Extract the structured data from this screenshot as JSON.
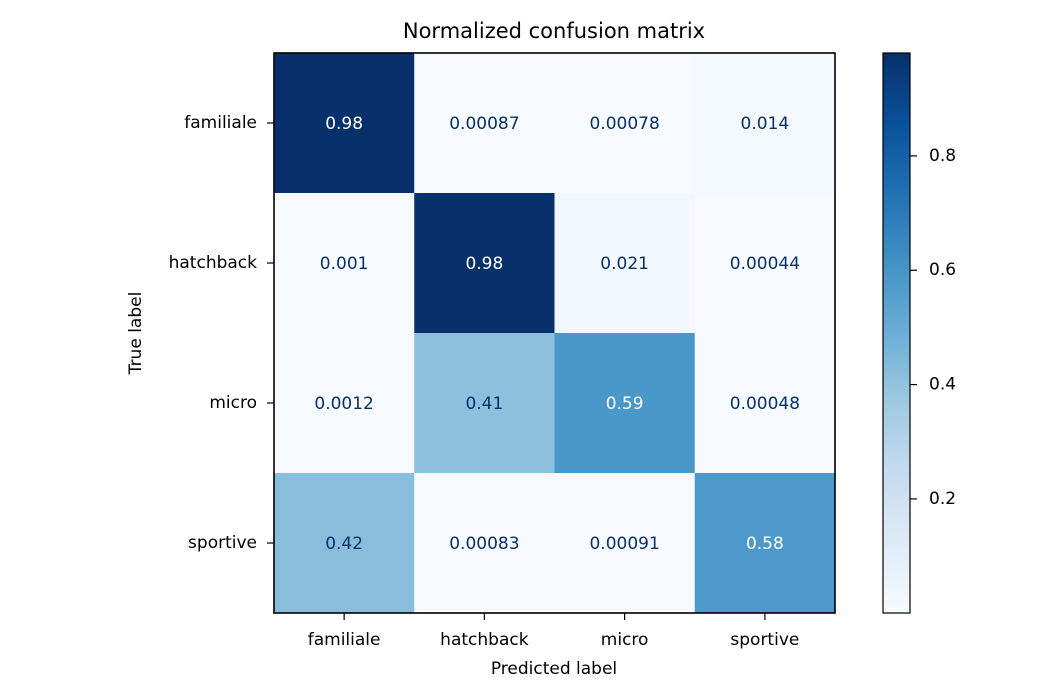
{
  "chart_data": {
    "type": "heatmap",
    "title": "Normalized confusion matrix",
    "xlabel": "Predicted label",
    "ylabel": "True label",
    "x_categories": [
      "familiale",
      "hatchback",
      "micro",
      "sportive"
    ],
    "y_categories": [
      "familiale",
      "hatchback",
      "micro",
      "sportive"
    ],
    "values": [
      [
        0.98,
        0.00087,
        0.00078,
        0.014
      ],
      [
        0.001,
        0.98,
        0.021,
        0.00044
      ],
      [
        0.0012,
        0.41,
        0.59,
        0.00048
      ],
      [
        0.42,
        0.00083,
        0.00091,
        0.58
      ]
    ],
    "cell_labels": [
      [
        "0.98",
        "0.00087",
        "0.00078",
        "0.014"
      ],
      [
        "0.001",
        "0.98",
        "0.021",
        "0.00044"
      ],
      [
        "0.0012",
        "0.41",
        "0.59",
        "0.00048"
      ],
      [
        "0.42",
        "0.00083",
        "0.00091",
        "0.58"
      ]
    ],
    "colormap": "Blues",
    "colorbar": {
      "range": [
        0.00044,
        0.98
      ],
      "ticks": [
        0.2,
        0.4,
        0.6,
        0.8
      ],
      "tick_labels": [
        "0.2",
        "0.4",
        "0.6",
        "0.8"
      ]
    },
    "colors": {
      "low": "#f7fbff",
      "high": "#08306b",
      "text_dark": "#08306b",
      "text_light": "#ffffff"
    }
  }
}
